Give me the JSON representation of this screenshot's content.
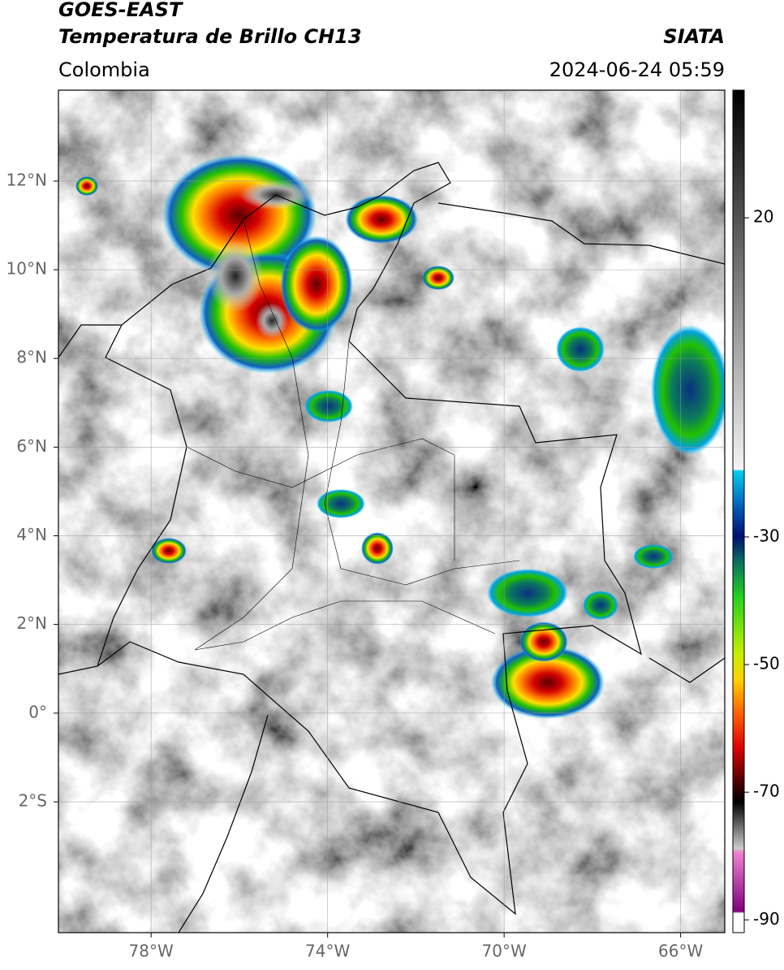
{
  "header": {
    "title": "GOES-EAST",
    "subtitle": "Temperatura de Brillo CH13",
    "source": "SIATA",
    "region": "Colombia",
    "timestamp": "2024-06-24 05:59"
  },
  "map": {
    "xlim": [
      -80.1,
      -65
    ],
    "ylim": [
      -4.95,
      14.05
    ],
    "grid": true,
    "xticks": [
      {
        "value": -78,
        "label": "78°W"
      },
      {
        "value": -74,
        "label": "74°W"
      },
      {
        "value": -70,
        "label": "70°W"
      },
      {
        "value": -66,
        "label": "66°W"
      }
    ],
    "yticks": [
      {
        "value": 12,
        "label": "12°N"
      },
      {
        "value": 10,
        "label": "10°N"
      },
      {
        "value": 8,
        "label": "8°N"
      },
      {
        "value": 6,
        "label": "6°N"
      },
      {
        "value": 4,
        "label": "4°N"
      },
      {
        "value": 2,
        "label": "2°N"
      },
      {
        "value": 0,
        "label": "0°"
      },
      {
        "value": -2,
        "label": "2°S"
      }
    ]
  },
  "colorbar": {
    "lim": [
      -92,
      40
    ],
    "ticks": [
      20,
      -30,
      -50,
      -70,
      -90
    ]
  }
}
